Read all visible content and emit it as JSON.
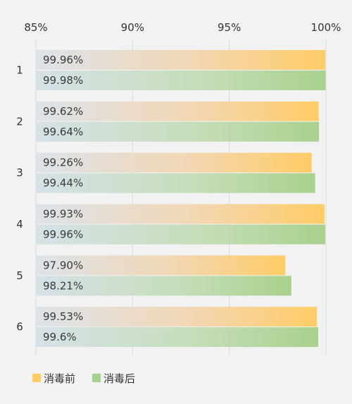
{
  "chart_data": {
    "type": "bar",
    "orientation": "horizontal",
    "categories": [
      "1",
      "2",
      "3",
      "4",
      "5",
      "6"
    ],
    "series": [
      {
        "name": "消毒前",
        "color": "#ffcc66",
        "values": [
          99.96,
          99.62,
          99.26,
          99.93,
          97.9,
          99.53
        ],
        "labels": [
          "99.96%",
          "99.62%",
          "99.26%",
          "99.93%",
          "97.90%",
          "99.53%"
        ]
      },
      {
        "name": "消毒后",
        "color": "#a9d18e",
        "values": [
          99.98,
          99.64,
          99.44,
          99.96,
          98.21,
          99.6
        ],
        "labels": [
          "99.98%",
          "99.64%",
          "99.44%",
          "99.96%",
          "98.21%",
          "99.6%"
        ]
      }
    ],
    "xlim": [
      85,
      100
    ],
    "xticks": [
      85,
      90,
      95,
      100
    ],
    "xtick_labels": [
      "85%",
      "90%",
      "95%",
      "100%"
    ],
    "grid": true,
    "legend_position": "bottom-left"
  }
}
